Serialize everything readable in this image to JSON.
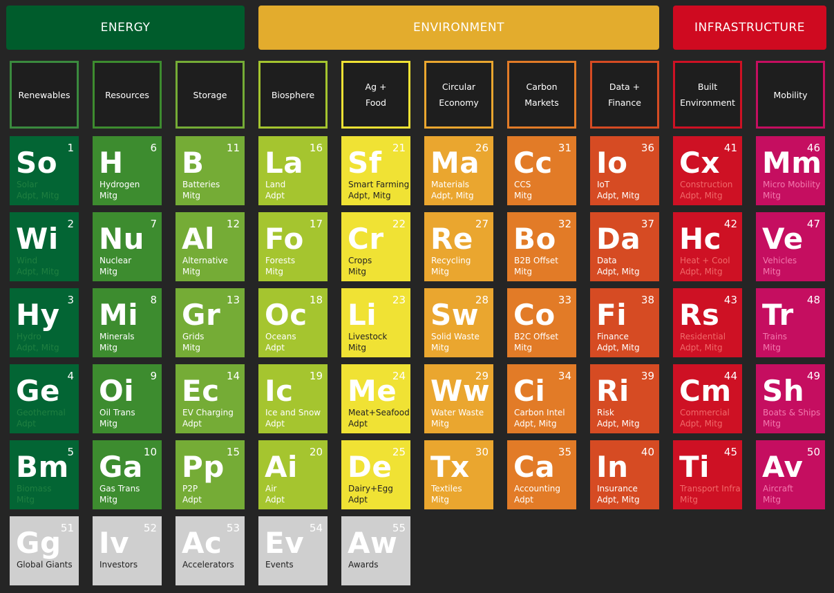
{
  "bands": {
    "energy": "ENERGY",
    "environment": "ENVIRONMENT",
    "infrastructure": "INFRASTRUCTURE"
  },
  "colors": {
    "energy": "#005c2c",
    "environment": "#e3ac2d",
    "infrastructure": "#cf0a20",
    "c1": "#036534",
    "c2": "#3d8c2f",
    "c3": "#75ac36",
    "c4": "#a5c52f",
    "c5": "#f0e234",
    "c6": "#eaa62f",
    "c7": "#e27b27",
    "c8": "#d64b23",
    "c9": "#ce1124",
    "c10": "#c50e60",
    "gray": "#cfcfcf"
  },
  "categories": [
    {
      "label": "Renewables",
      "border": "#3a8a3e"
    },
    {
      "label": "Resources",
      "border": "#3d8c2f"
    },
    {
      "label": "Storage",
      "border": "#75ac36"
    },
    {
      "label": "Biosphere",
      "border": "#a5c52f"
    },
    {
      "label": "Ag +\nFood",
      "border": "#f0e234"
    },
    {
      "label": "Circular\nEconomy",
      "border": "#eaa62f"
    },
    {
      "label": "Carbon\nMarkets",
      "border": "#e27b27"
    },
    {
      "label": "Data +\nFinance",
      "border": "#d64b23"
    },
    {
      "label": "Built\nEnvironment",
      "border": "#ce1124"
    },
    {
      "label": "Mobility",
      "border": "#c50e60"
    }
  ],
  "columns": [
    {
      "color": "#036534",
      "subcolor": "#1f7f40",
      "tiles": [
        {
          "num": "1",
          "sym": "So",
          "name": "Solar",
          "tag": "Adpt, Mitg"
        },
        {
          "num": "2",
          "sym": "Wi",
          "name": "Wind",
          "tag": "Adpt, Mitg"
        },
        {
          "num": "3",
          "sym": "Hy",
          "name": "Hydro",
          "tag": "Adpt, Mitg"
        },
        {
          "num": "4",
          "sym": "Ge",
          "name": "Geothermal",
          "tag": "Adpt"
        },
        {
          "num": "5",
          "sym": "Bm",
          "name": "Biomass",
          "tag": "Mitg"
        }
      ]
    },
    {
      "color": "#3d8c2f",
      "subcolor": "#ffffff",
      "tiles": [
        {
          "num": "6",
          "sym": "H",
          "name": "Hydrogen",
          "tag": "Mitg"
        },
        {
          "num": "7",
          "sym": "Nu",
          "name": "Nuclear",
          "tag": "Mitg"
        },
        {
          "num": "8",
          "sym": "Mi",
          "name": "Minerals",
          "tag": "Mitg"
        },
        {
          "num": "9",
          "sym": "Oi",
          "name": "Oil Trans",
          "tag": "Mitg"
        },
        {
          "num": "10",
          "sym": "Ga",
          "name": "Gas Trans",
          "tag": "Mitg"
        }
      ]
    },
    {
      "color": "#75ac36",
      "subcolor": "#ffffff",
      "tiles": [
        {
          "num": "11",
          "sym": "B",
          "name": "Batteries",
          "tag": "Mitg"
        },
        {
          "num": "12",
          "sym": "Al",
          "name": "Alternative",
          "tag": "Mitg"
        },
        {
          "num": "13",
          "sym": "Gr",
          "name": "Grids",
          "tag": "Mitg"
        },
        {
          "num": "14",
          "sym": "Ec",
          "name": "EV Charging",
          "tag": "Adpt"
        },
        {
          "num": "15",
          "sym": "Pp",
          "name": "P2P",
          "tag": "Adpt"
        }
      ]
    },
    {
      "color": "#a5c52f",
      "subcolor": "#ffffff",
      "tiles": [
        {
          "num": "16",
          "sym": "La",
          "name": "Land",
          "tag": "Adpt"
        },
        {
          "num": "17",
          "sym": "Fo",
          "name": "Forests",
          "tag": "Mitg"
        },
        {
          "num": "18",
          "sym": "Oc",
          "name": "Oceans",
          "tag": "Adpt"
        },
        {
          "num": "19",
          "sym": "Ic",
          "name": "Ice and Snow",
          "tag": "Adpt"
        },
        {
          "num": "20",
          "sym": "Ai",
          "name": "Air",
          "tag": "Adpt"
        }
      ]
    },
    {
      "color": "#f0e234",
      "subcolor": "#222222",
      "tiles": [
        {
          "num": "21",
          "sym": "Sf",
          "name": "Smart Farming",
          "tag": "Adpt, Mitg"
        },
        {
          "num": "22",
          "sym": "Cr",
          "name": "Crops",
          "tag": "Mitg"
        },
        {
          "num": "23",
          "sym": "Li",
          "name": "Livestock",
          "tag": "Mitg"
        },
        {
          "num": "24",
          "sym": "Me",
          "name": "Meat+Seafood",
          "tag": "Adpt"
        },
        {
          "num": "25",
          "sym": "De",
          "name": "Dairy+Egg",
          "tag": "Adpt"
        }
      ]
    },
    {
      "color": "#eaa62f",
      "subcolor": "#ffffff",
      "tiles": [
        {
          "num": "26",
          "sym": "Ma",
          "name": "Materials",
          "tag": "Adpt, Mitg"
        },
        {
          "num": "27",
          "sym": "Re",
          "name": "Recycling",
          "tag": "Mitg"
        },
        {
          "num": "28",
          "sym": "Sw",
          "name": "Solid Waste",
          "tag": "Mitg"
        },
        {
          "num": "29",
          "sym": "Ww",
          "name": "Water Waste",
          "tag": "Mitg"
        },
        {
          "num": "30",
          "sym": "Tx",
          "name": "Textiles",
          "tag": "Mitg"
        }
      ]
    },
    {
      "color": "#e27b27",
      "subcolor": "#ffffff",
      "tiles": [
        {
          "num": "31",
          "sym": "Cc",
          "name": "CCS",
          "tag": "Mitg"
        },
        {
          "num": "32",
          "sym": "Bo",
          "name": "B2B Offset",
          "tag": "Mitg"
        },
        {
          "num": "33",
          "sym": "Co",
          "name": "B2C Offset",
          "tag": "Mitg"
        },
        {
          "num": "34",
          "sym": "Ci",
          "name": "Carbon Intel",
          "tag": "Adpt, Mitg"
        },
        {
          "num": "35",
          "sym": "Ca",
          "name": "Accounting",
          "tag": "Adpt"
        }
      ]
    },
    {
      "color": "#d64b23",
      "subcolor": "#ffffff",
      "tiles": [
        {
          "num": "36",
          "sym": "Io",
          "name": "IoT",
          "tag": "Adpt, Mitg"
        },
        {
          "num": "37",
          "sym": "Da",
          "name": "Data",
          "tag": "Adpt, Mitg"
        },
        {
          "num": "38",
          "sym": "Fi",
          "name": "Finance",
          "tag": "Adpt, Mitg"
        },
        {
          "num": "39",
          "sym": "Ri",
          "name": "Risk",
          "tag": "Adpt, Mitg"
        },
        {
          "num": "40",
          "sym": "In",
          "name": "Insurance",
          "tag": "Adpt, Mitg"
        }
      ]
    },
    {
      "color": "#ce1124",
      "subcolor": "#f06a6a",
      "tiles": [
        {
          "num": "41",
          "sym": "Cx",
          "name": "Construction",
          "tag": "Adpt, Mitg"
        },
        {
          "num": "42",
          "sym": "Hc",
          "name": "Heat + Cool",
          "tag": "Adpt, Mitg"
        },
        {
          "num": "43",
          "sym": "Rs",
          "name": "Residential",
          "tag": "Adpt, Mitg"
        },
        {
          "num": "44",
          "sym": "Cm",
          "name": "Commercial",
          "tag": "Adpt, Mitg"
        },
        {
          "num": "45",
          "sym": "Ti",
          "name": "Transport Infra",
          "tag": "Mitg"
        }
      ]
    },
    {
      "color": "#c50e60",
      "subcolor": "#f27aae",
      "tiles": [
        {
          "num": "46",
          "sym": "Mm",
          "name": "Micro Mobility",
          "tag": "Mitg"
        },
        {
          "num": "47",
          "sym": "Ve",
          "name": "Vehicles",
          "tag": "Mitg"
        },
        {
          "num": "48",
          "sym": "Tr",
          "name": "Trains",
          "tag": "Mitg"
        },
        {
          "num": "49",
          "sym": "Sh",
          "name": "Boats & Ships",
          "tag": "Mitg"
        },
        {
          "num": "50",
          "sym": "Av",
          "name": "Aircraft",
          "tag": "Mitg"
        }
      ]
    }
  ],
  "extras": [
    {
      "num": "51",
      "sym": "Gg",
      "name": "Global Giants"
    },
    {
      "num": "52",
      "sym": "Iv",
      "name": "Investors"
    },
    {
      "num": "53",
      "sym": "Ac",
      "name": "Accelerators"
    },
    {
      "num": "54",
      "sym": "Ev",
      "name": "Events"
    },
    {
      "num": "55",
      "sym": "Aw",
      "name": "Awards"
    }
  ]
}
